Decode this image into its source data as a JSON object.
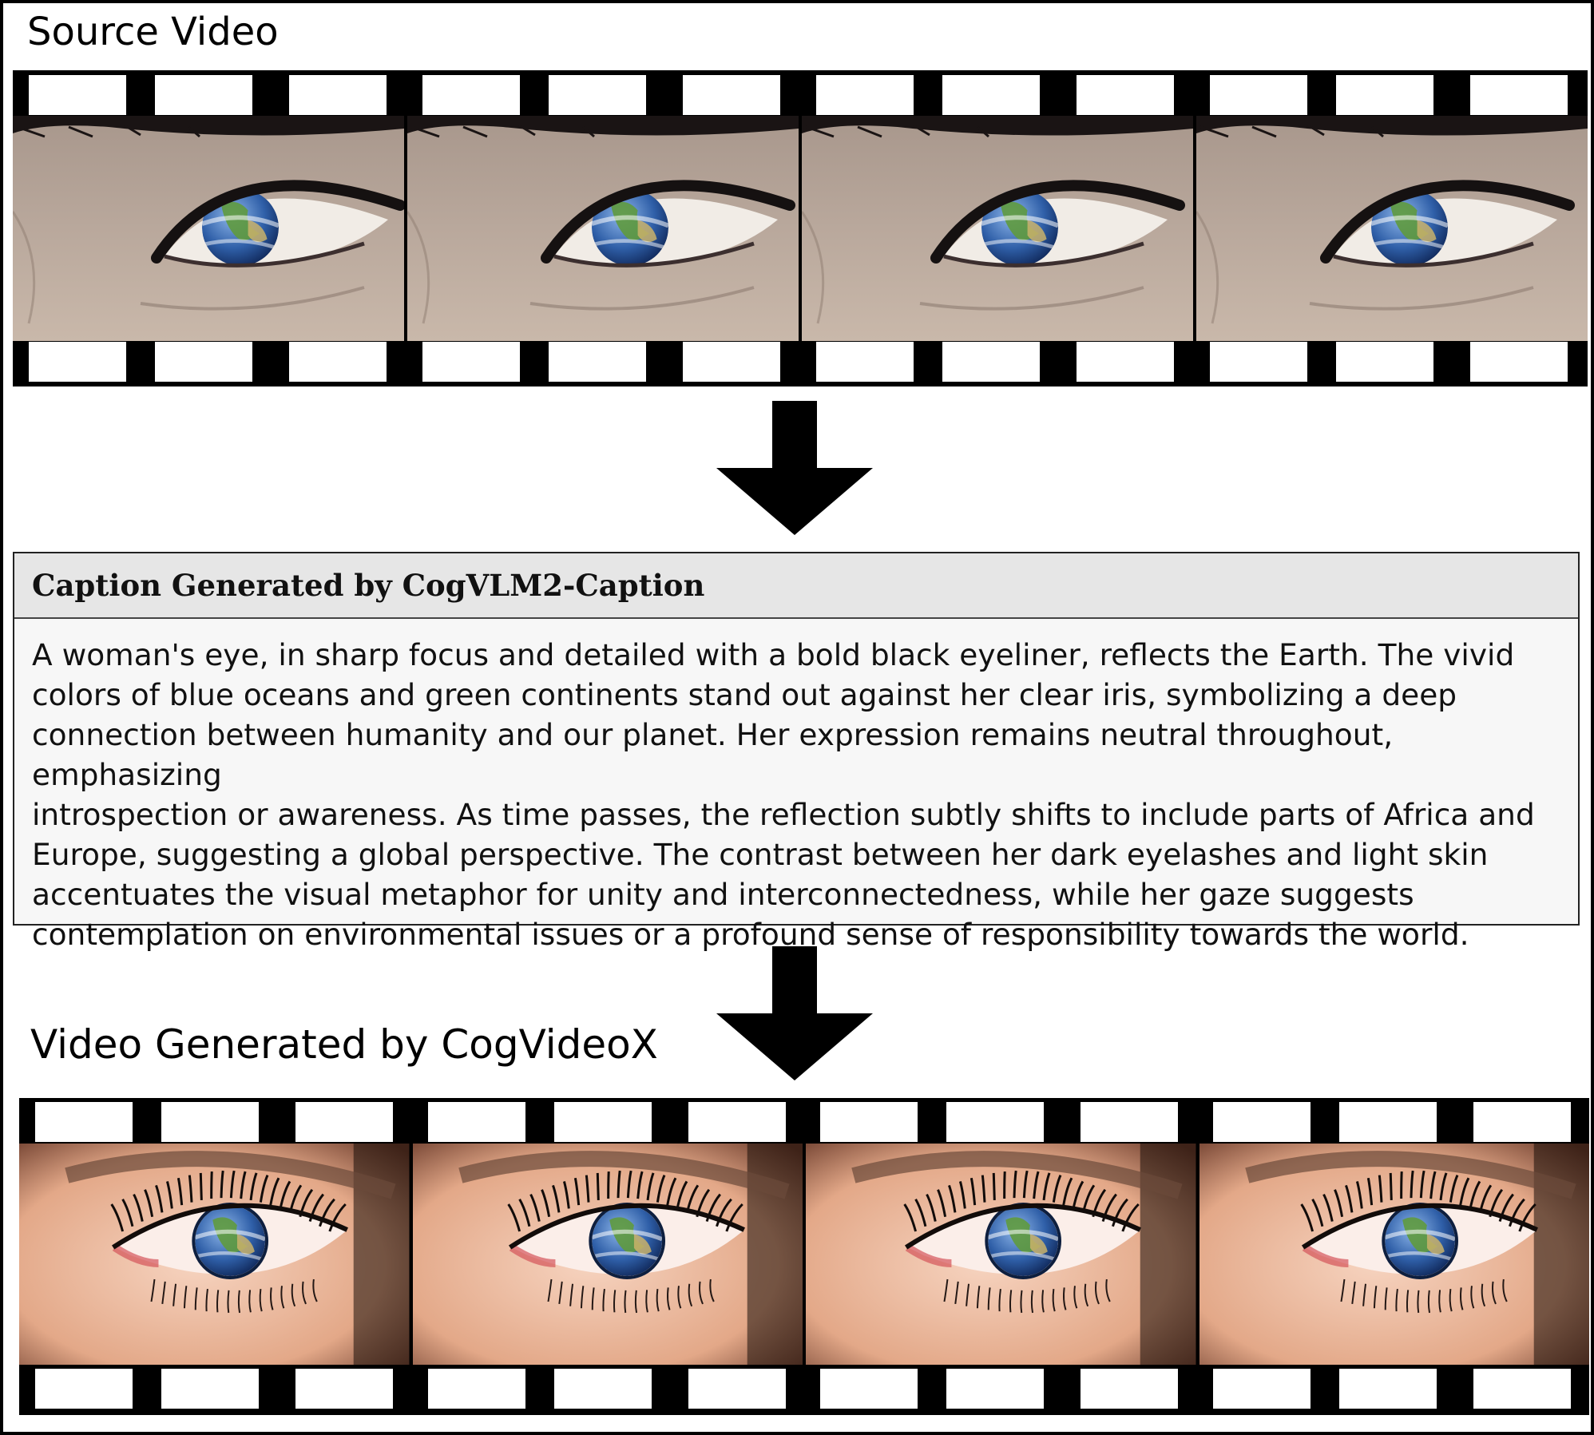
{
  "source_section": {
    "title": "Source Video"
  },
  "caption_section": {
    "title": "Caption Generated by CogVLM2-Caption",
    "text": "A woman's eye, in sharp focus and detailed with a bold black eyeliner, reflects the Earth. The vivid\ncolors of blue oceans and green continents stand out against her clear iris, symbolizing a deep\nconnection between humanity and our planet. Her expression remains neutral throughout, emphasizing\nintrospection or awareness. As time passes, the reflection subtly shifts to include parts of Africa and\nEurope, suggesting a global perspective. The contrast between her dark eyelashes and light skin\naccentuates the visual metaphor for unity and  interconnectedness, while her gaze suggests\ncontemplation on environmental issues or a profound sense of responsibility towards the world."
  },
  "generated_section": {
    "title": "Video Generated by CogVideoX"
  },
  "colors": {
    "film": "#000000",
    "caption_header_bg": "#e6e6e6",
    "caption_body_bg": "#f7f7f7",
    "source_skin": "#b9a89c",
    "generated_skin": "#e3a888",
    "ocean": "#2f5fa8",
    "land": "#5f9a3e"
  },
  "source_frames": [
    {
      "frame_label": "source-frame-1",
      "eye_shift": 0
    },
    {
      "frame_label": "source-frame-2",
      "eye_shift": 1
    },
    {
      "frame_label": "source-frame-3",
      "eye_shift": 2
    },
    {
      "frame_label": "source-frame-4",
      "eye_shift": 3
    }
  ],
  "generated_frames": [
    {
      "frame_label": "generated-frame-1",
      "eye_shift": 0
    },
    {
      "frame_label": "generated-frame-2",
      "eye_shift": 1
    },
    {
      "frame_label": "generated-frame-3",
      "eye_shift": 2
    },
    {
      "frame_label": "generated-frame-4",
      "eye_shift": 3
    }
  ]
}
